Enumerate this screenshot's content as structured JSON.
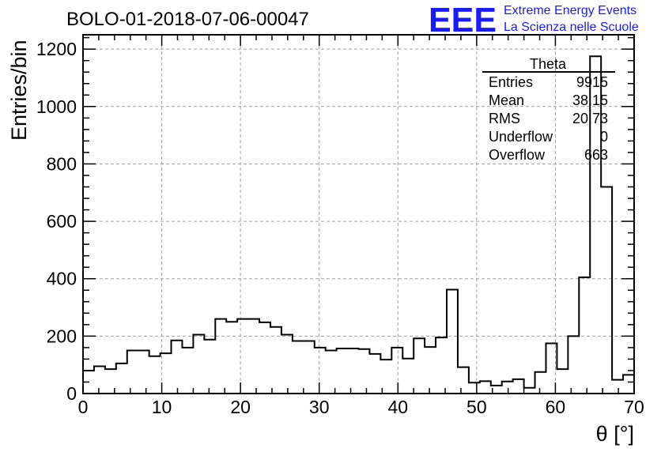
{
  "header": {
    "run_title": "BOLO-01-2018-07-06-00047",
    "logo_mark": "EEE",
    "logo_line1": "Extreme Energy Events",
    "logo_line2": "La Scienza nelle Scuole"
  },
  "colors": {
    "logo": "#1a1aff",
    "histogram": "#000000",
    "grid": "#a0a0a0"
  },
  "stats": {
    "title": "Theta",
    "rows": [
      {
        "label": "Entries",
        "value": "9915"
      },
      {
        "label": "Mean",
        "value": "38.15"
      },
      {
        "label": "RMS",
        "value": "20.73"
      },
      {
        "label": "Underflow",
        "value": "0"
      },
      {
        "label": "Overflow",
        "value": "663"
      }
    ]
  },
  "chart_data": {
    "type": "bar",
    "subtype": "step-histogram",
    "title": "BOLO-01-2018-07-06-00047",
    "xlabel": "θ [°]",
    "ylabel": "Entries/bin",
    "xlim": [
      0,
      70
    ],
    "ylim": [
      0,
      1250
    ],
    "bin_width": 1.4,
    "x_ticks": [
      0,
      10,
      20,
      30,
      40,
      50,
      60,
      70
    ],
    "y_ticks": [
      0,
      200,
      400,
      600,
      800,
      1000,
      1200
    ],
    "grid": true,
    "values": [
      80,
      95,
      85,
      105,
      150,
      150,
      130,
      140,
      185,
      160,
      205,
      188,
      260,
      250,
      260,
      260,
      248,
      232,
      205,
      183,
      183,
      160,
      150,
      157,
      157,
      155,
      138,
      118,
      160,
      122,
      192,
      162,
      195,
      362,
      92,
      38,
      43,
      28,
      42,
      50,
      20,
      75,
      175,
      85,
      200,
      405,
      1175,
      720,
      48,
      65,
      45
    ]
  }
}
